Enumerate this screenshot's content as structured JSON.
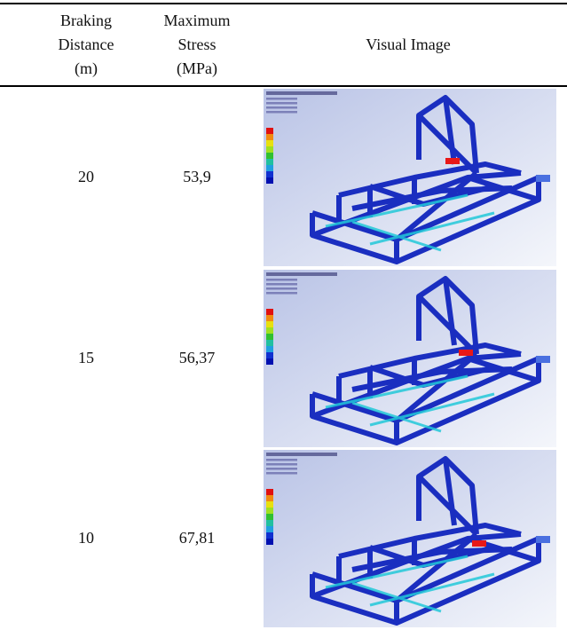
{
  "table": {
    "header": [
      [
        "Braking",
        "Distance",
        "(m)"
      ],
      [
        "Maximum",
        "Stress",
        "(MPa)"
      ],
      [
        "Visual Image"
      ]
    ],
    "rows": [
      [
        "20",
        "53,9"
      ],
      [
        "15",
        "56,37"
      ],
      [
        "10",
        "67,81"
      ]
    ]
  }
}
